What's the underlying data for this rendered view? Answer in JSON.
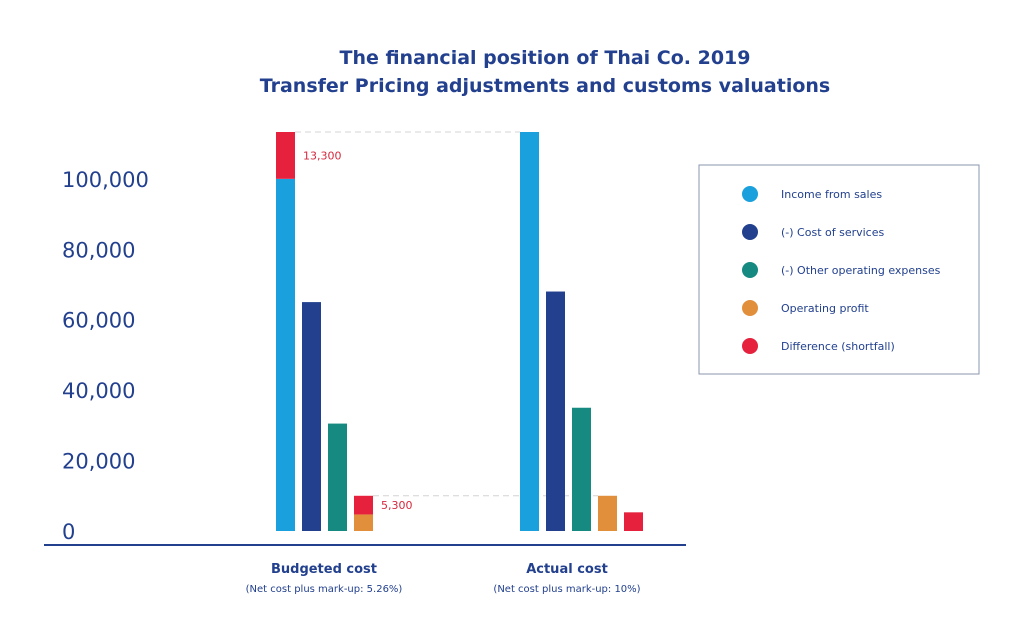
{
  "chart_data": {
    "type": "bar",
    "title_lines": [
      "The financial position of Thai Co. 2019",
      "Transfer Pricing adjustments and customs valuations"
    ],
    "categories": [
      {
        "label": "Budgeted cost",
        "sublabel": "(Net cost plus mark-up: 5.26%)"
      },
      {
        "label": "Actual cost",
        "sublabel": "(Net cost plus mark-up: 10%)"
      }
    ],
    "series": [
      {
        "name": "Income from sales",
        "color": "#1aa0dc",
        "values": [
          100000,
          113300
        ]
      },
      {
        "name": "(-) Cost of services",
        "color": "#22408e",
        "values": [
          65000,
          68000
        ]
      },
      {
        "name": "(-) Other operating expenses",
        "color": "#168a80",
        "values": [
          30500,
          35000
        ]
      },
      {
        "name": "Operating profit",
        "color": "#e28f3c",
        "values": [
          4700,
          10000
        ]
      },
      {
        "name": "Difference (shortfall)",
        "color": "#e5213d",
        "values": [
          13300,
          5300
        ]
      }
    ],
    "stacking": [
      {
        "category": 0,
        "base_series": 0,
        "top_series": 4
      },
      {
        "category": 0,
        "base_series": 3,
        "top_series": 4
      }
    ],
    "data_labels": [
      {
        "category": 0,
        "series": 4,
        "stack_on": 0,
        "text": "13,300"
      },
      {
        "category": 0,
        "series": 4,
        "stack_on": 3,
        "text": "5,300"
      }
    ],
    "y_ticks": [
      {
        "value": 0,
        "label": "0"
      },
      {
        "value": 20000,
        "label": "20,000"
      },
      {
        "value": 40000,
        "label": "40,000"
      },
      {
        "value": 60000,
        "label": "60,000"
      },
      {
        "value": 80000,
        "label": "80,000"
      },
      {
        "value": 100000,
        "label": "100,000"
      }
    ],
    "ylim": [
      0,
      113300
    ],
    "grid": false,
    "legend_position": "right"
  }
}
